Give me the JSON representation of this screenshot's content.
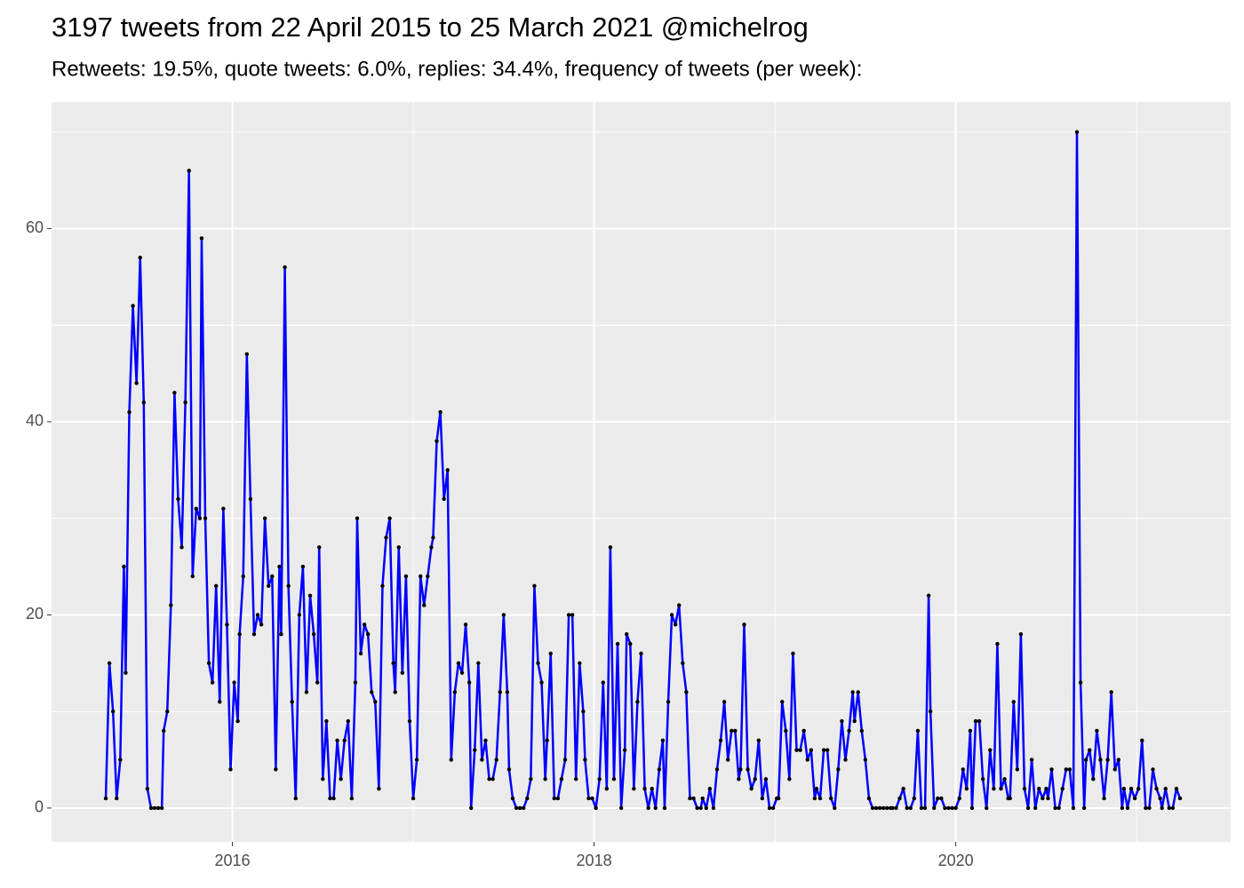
{
  "chart_data": {
    "type": "line",
    "title": "3197 tweets from 22 April 2015 to 25 March 2021 @michelrog",
    "subtitle": "Retweets: 19.5%, quote tweets: 6.0%, replies: 34.4%, frequency of tweets (per week):",
    "x": [
      2015.3,
      2015.32,
      2015.34,
      2015.36,
      2015.38,
      2015.4,
      2015.41,
      2015.43,
      2015.45,
      2015.47,
      2015.49,
      2015.51,
      2015.53,
      2015.55,
      2015.57,
      2015.59,
      2015.61,
      2015.62,
      2015.64,
      2015.66,
      2015.68,
      2015.7,
      2015.72,
      2015.74,
      2015.76,
      2015.78,
      2015.8,
      2015.82,
      2015.83,
      2015.85,
      2015.87,
      2015.89,
      2015.91,
      2015.93,
      2015.95,
      2015.97,
      2015.99,
      2016.01,
      2016.03,
      2016.04,
      2016.06,
      2016.08,
      2016.1,
      2016.12,
      2016.14,
      2016.16,
      2016.18,
      2016.2,
      2016.22,
      2016.24,
      2016.26,
      2016.27,
      2016.29,
      2016.31,
      2016.33,
      2016.35,
      2016.37,
      2016.39,
      2016.41,
      2016.43,
      2016.45,
      2016.47,
      2016.48,
      2016.5,
      2016.52,
      2016.54,
      2016.56,
      2016.58,
      2016.6,
      2016.62,
      2016.64,
      2016.66,
      2016.68,
      2016.69,
      2016.71,
      2016.73,
      2016.75,
      2016.77,
      2016.79,
      2016.81,
      2016.83,
      2016.85,
      2016.87,
      2016.89,
      2016.9,
      2016.92,
      2016.94,
      2016.96,
      2016.98,
      2017.0,
      2017.02,
      2017.04,
      2017.06,
      2017.08,
      2017.1,
      2017.11,
      2017.13,
      2017.15,
      2017.17,
      2017.19,
      2017.21,
      2017.23,
      2017.25,
      2017.27,
      2017.29,
      2017.31,
      2017.32,
      2017.34,
      2017.36,
      2017.38,
      2017.4,
      2017.42,
      2017.44,
      2017.46,
      2017.48,
      2017.5,
      2017.52,
      2017.53,
      2017.55,
      2017.57,
      2017.59,
      2017.61,
      2017.63,
      2017.65,
      2017.67,
      2017.69,
      2017.71,
      2017.73,
      2017.74,
      2017.76,
      2017.78,
      2017.8,
      2017.82,
      2017.84,
      2017.86,
      2017.88,
      2017.9,
      2017.92,
      2017.94,
      2017.95,
      2017.97,
      2017.99,
      2018.01,
      2018.03,
      2018.05,
      2018.07,
      2018.09,
      2018.11,
      2018.13,
      2018.15,
      2018.17,
      2018.18,
      2018.2,
      2018.22,
      2018.24,
      2018.26,
      2018.28,
      2018.3,
      2018.32,
      2018.34,
      2018.36,
      2018.38,
      2018.39,
      2018.41,
      2018.43,
      2018.45,
      2018.47,
      2018.49,
      2018.51,
      2018.53,
      2018.55,
      2018.57,
      2018.59,
      2018.6,
      2018.62,
      2018.64,
      2018.66,
      2018.68,
      2018.7,
      2018.72,
      2018.74,
      2018.76,
      2018.78,
      2018.8,
      2018.81,
      2018.83,
      2018.85,
      2018.87,
      2018.89,
      2018.91,
      2018.93,
      2018.95,
      2018.97,
      2018.99,
      2019.01,
      2019.02,
      2019.04,
      2019.06,
      2019.08,
      2019.1,
      2019.12,
      2019.14,
      2019.16,
      2019.18,
      2019.2,
      2019.22,
      2019.23,
      2019.25,
      2019.27,
      2019.29,
      2019.31,
      2019.33,
      2019.35,
      2019.37,
      2019.39,
      2019.41,
      2019.43,
      2019.44,
      2019.46,
      2019.48,
      2019.5,
      2019.52,
      2019.54,
      2019.56,
      2019.58,
      2019.6,
      2019.62,
      2019.64,
      2019.65,
      2019.67,
      2019.69,
      2019.71,
      2019.73,
      2019.75,
      2019.77,
      2019.79,
      2019.81,
      2019.83,
      2019.85,
      2019.86,
      2019.88,
      2019.9,
      2019.92,
      2019.94,
      2019.96,
      2019.98,
      2020.0,
      2020.02,
      2020.04,
      2020.06,
      2020.08,
      2020.09,
      2020.11,
      2020.13,
      2020.15,
      2020.17,
      2020.19,
      2020.21,
      2020.23,
      2020.25,
      2020.27,
      2020.29,
      2020.3,
      2020.32,
      2020.34,
      2020.36,
      2020.38,
      2020.4,
      2020.42,
      2020.44,
      2020.46,
      2020.48,
      2020.5,
      2020.51,
      2020.53,
      2020.55,
      2020.57,
      2020.59,
      2020.61,
      2020.63,
      2020.65,
      2020.67,
      2020.69,
      2020.71,
      2020.72,
      2020.74,
      2020.76,
      2020.78,
      2020.8,
      2020.82,
      2020.84,
      2020.86,
      2020.88,
      2020.9,
      2020.92,
      2020.93,
      2020.95,
      2020.97,
      2020.99,
      2021.01,
      2021.03,
      2021.05,
      2021.07,
      2021.09,
      2021.11,
      2021.13,
      2021.14,
      2021.16,
      2021.18,
      2021.2,
      2021.22,
      2021.24
    ],
    "series": [
      {
        "color": "#0000ff",
        "point_color": "#000000",
        "values": [
          1,
          15,
          10,
          1,
          5,
          25,
          14,
          41,
          52,
          44,
          57,
          42,
          2,
          0,
          0,
          0,
          0,
          8,
          10,
          21,
          43,
          32,
          27,
          42,
          66,
          24,
          31,
          30,
          59,
          30,
          15,
          13,
          23,
          11,
          31,
          19,
          4,
          13,
          9,
          18,
          24,
          47,
          32,
          18,
          20,
          19,
          30,
          23,
          24,
          4,
          25,
          18,
          56,
          23,
          11,
          1,
          20,
          25,
          12,
          22,
          18,
          13,
          27,
          3,
          9,
          1,
          1,
          7,
          3,
          7,
          9,
          1,
          13,
          30,
          16,
          19,
          18,
          12,
          11,
          2,
          23,
          28,
          30,
          15,
          12,
          27,
          14,
          24,
          9,
          1,
          5,
          24,
          21,
          24,
          27,
          28,
          38,
          41,
          32,
          35,
          5,
          12,
          15,
          14,
          19,
          13,
          0,
          6,
          15,
          5,
          7,
          3,
          3,
          5,
          12,
          20,
          12,
          4,
          1,
          0,
          0,
          0,
          1,
          3,
          23,
          15,
          13,
          3,
          7,
          16,
          1,
          1,
          3,
          5,
          20,
          20,
          3,
          15,
          10,
          5,
          1,
          1,
          0,
          3,
          13,
          2,
          27,
          3,
          17,
          0,
          6,
          18,
          17,
          2,
          11,
          16,
          2,
          0,
          2,
          0,
          4,
          7,
          0,
          11,
          20,
          19,
          21,
          15,
          12,
          1,
          1,
          0,
          0,
          1,
          0,
          2,
          0,
          4,
          7,
          11,
          5,
          8,
          8,
          3,
          4,
          19,
          4,
          2,
          3,
          7,
          1,
          3,
          0,
          0,
          1,
          1,
          11,
          8,
          3,
          16,
          6,
          6,
          8,
          5,
          6,
          1,
          2,
          1,
          6,
          6,
          1,
          0,
          4,
          9,
          5,
          8,
          12,
          9,
          12,
          8,
          5,
          1,
          0,
          0,
          0,
          0,
          0,
          0,
          0,
          0,
          1,
          2,
          0,
          0,
          1,
          8,
          0,
          0,
          22,
          10,
          0,
          1,
          1,
          0,
          0,
          0,
          0,
          1,
          4,
          2,
          8,
          0,
          9,
          9,
          3,
          0,
          6,
          2,
          17,
          2,
          3,
          1,
          1,
          11,
          4,
          18,
          2,
          0,
          5,
          0,
          2,
          1,
          2,
          1,
          4,
          0,
          0,
          2,
          4,
          4,
          0,
          70,
          13,
          0,
          5,
          6,
          3,
          8,
          5,
          1,
          5,
          12,
          4,
          5,
          0,
          2,
          0,
          2,
          1,
          2,
          7,
          0,
          0,
          4,
          2,
          1,
          0,
          2,
          0,
          0,
          2,
          1
        ]
      }
    ],
    "xlim": [
      2015.0,
      2021.52
    ],
    "ylim": [
      -3.5,
      73.1
    ],
    "xticks": [
      2016,
      2018,
      2020
    ],
    "yticks": [
      0,
      20,
      40,
      60
    ],
    "grid": true,
    "panel_color": "#ebebeb"
  }
}
